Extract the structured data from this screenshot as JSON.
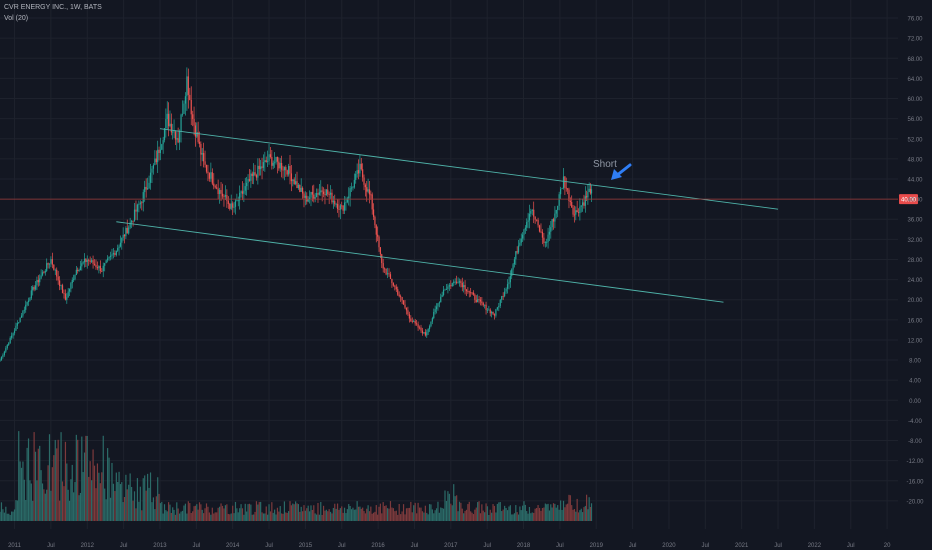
{
  "header": {
    "title": "CVR ENERGY INC., 1W, BATS",
    "volume_label": "Vol (20)"
  },
  "colors": {
    "background": "#131722",
    "grid": "#1e222d",
    "up": "#26a69a",
    "down": "#ef5350",
    "up_volume": "#2b6b68",
    "down_volume": "#7d3a3c",
    "trendline": "#4fb3a9",
    "price_line": "#9e3a3a",
    "price_badge": "#e84b4b",
    "annotation": "#8f96a3",
    "arrow": "#2f7ef5",
    "axis_text": "#787b86"
  },
  "annotation": {
    "text": "Short",
    "icon": "arrow-pointing-down-left-icon"
  },
  "chart_data": {
    "type": "candlestick",
    "title": "CVR ENERGY INC., 1W, BATS",
    "indicator": "Vol (20)",
    "price_axis_ticks": [
      "76.00",
      "72.00",
      "68.00",
      "64.00",
      "60.00",
      "56.00",
      "52.00",
      "48.00",
      "44.00",
      "40.00",
      "36.00",
      "32.00",
      "28.00",
      "24.00",
      "20.00",
      "16.00",
      "12.00",
      "8.00",
      "4.00",
      "0.00",
      "-4.00",
      "-8.00",
      "-12.00",
      "-16.00",
      "-20.00"
    ],
    "price_axis_values": [
      76,
      72,
      68,
      64,
      60,
      56,
      52,
      48,
      44,
      40,
      36,
      32,
      28,
      24,
      20,
      16,
      12,
      8,
      4,
      0,
      -4,
      -8,
      -12,
      -16,
      -20
    ],
    "ylim": [
      -24,
      78
    ],
    "time_axis_ticks": [
      "2011",
      "Jul",
      "2012",
      "Jul",
      "2013",
      "Jul",
      "2014",
      "Jul",
      "2015",
      "Jul",
      "2016",
      "Jul",
      "2017",
      "Jul",
      "2018",
      "Jul",
      "2019",
      "Jul",
      "2020",
      "Jul",
      "2021",
      "Jul",
      "2022",
      "Jul",
      "20"
    ],
    "time_axis_values": [
      2011.0,
      2011.5,
      2012.0,
      2012.5,
      2013.0,
      2013.5,
      2014.0,
      2014.5,
      2015.0,
      2015.5,
      2016.0,
      2016.5,
      2017.0,
      2017.5,
      2018.0,
      2018.5,
      2019.0,
      2019.5,
      2020.0,
      2020.5,
      2021.0,
      2021.5,
      2022.0,
      2022.5,
      2023.0
    ],
    "xlim": [
      2010.8,
      2023.15
    ],
    "last_price": {
      "value": 40.0,
      "label": "40.00"
    },
    "price_path_anchors": [
      {
        "t": 2010.8,
        "p": 8
      },
      {
        "t": 2011.0,
        "p": 14
      },
      {
        "t": 2011.25,
        "p": 22
      },
      {
        "t": 2011.5,
        "p": 28
      },
      {
        "t": 2011.7,
        "p": 20
      },
      {
        "t": 2011.85,
        "p": 26
      },
      {
        "t": 2012.0,
        "p": 28
      },
      {
        "t": 2012.2,
        "p": 26
      },
      {
        "t": 2012.4,
        "p": 30
      },
      {
        "t": 2012.55,
        "p": 34
      },
      {
        "t": 2012.75,
        "p": 40
      },
      {
        "t": 2012.95,
        "p": 48
      },
      {
        "t": 2013.1,
        "p": 56
      },
      {
        "t": 2013.25,
        "p": 52
      },
      {
        "t": 2013.37,
        "p": 64
      },
      {
        "t": 2013.45,
        "p": 56
      },
      {
        "t": 2013.6,
        "p": 47
      },
      {
        "t": 2013.8,
        "p": 42
      },
      {
        "t": 2014.0,
        "p": 38
      },
      {
        "t": 2014.25,
        "p": 44
      },
      {
        "t": 2014.5,
        "p": 48
      },
      {
        "t": 2014.75,
        "p": 46
      },
      {
        "t": 2015.0,
        "p": 40
      },
      {
        "t": 2015.25,
        "p": 42
      },
      {
        "t": 2015.5,
        "p": 38
      },
      {
        "t": 2015.75,
        "p": 46
      },
      {
        "t": 2015.9,
        "p": 40
      },
      {
        "t": 2016.05,
        "p": 27
      },
      {
        "t": 2016.25,
        "p": 22
      },
      {
        "t": 2016.45,
        "p": 16
      },
      {
        "t": 2016.65,
        "p": 13
      },
      {
        "t": 2016.9,
        "p": 22
      },
      {
        "t": 2017.1,
        "p": 24
      },
      {
        "t": 2017.35,
        "p": 20
      },
      {
        "t": 2017.6,
        "p": 17
      },
      {
        "t": 2017.8,
        "p": 24
      },
      {
        "t": 2017.95,
        "p": 32
      },
      {
        "t": 2018.1,
        "p": 38
      },
      {
        "t": 2018.3,
        "p": 31
      },
      {
        "t": 2018.45,
        "p": 38
      },
      {
        "t": 2018.55,
        "p": 44
      },
      {
        "t": 2018.7,
        "p": 37
      },
      {
        "t": 2018.85,
        "p": 40
      },
      {
        "t": 2018.92,
        "p": 42
      },
      {
        "t": 2018.95,
        "p": 40
      }
    ],
    "trendlines": [
      {
        "name": "upper channel",
        "start": {
          "t": 2013.0,
          "p": 54
        },
        "end": {
          "t": 2021.5,
          "p": 38
        }
      },
      {
        "name": "lower channel",
        "start": {
          "t": 2012.4,
          "p": 35.5
        },
        "end": {
          "t": 2020.75,
          "p": 19.5
        }
      }
    ],
    "volume_bars_note": "histogram along bottom under price, up/down colored"
  }
}
